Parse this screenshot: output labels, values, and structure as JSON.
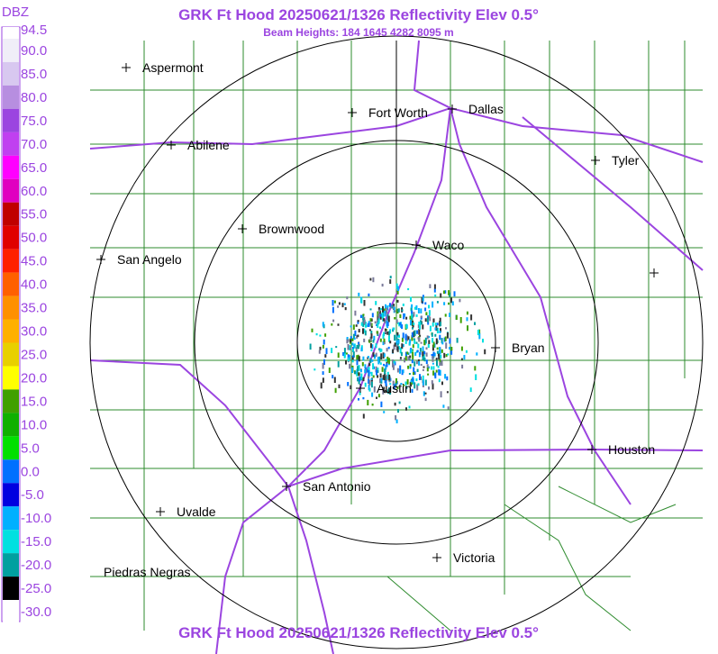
{
  "header": {
    "title": "GRK Ft Hood 20250621/1326 Reflectivity Elev 0.5°",
    "subtitle": "Beam Heights: 184 1645 4282 8095 m"
  },
  "colorbar": {
    "unit": "DBZ",
    "labels": [
      "94.5",
      "90.0",
      "85.0",
      "80.0",
      "75.0",
      "70.0",
      "65.0",
      "60.0",
      "55.0",
      "50.0",
      "45.0",
      "40.0",
      "35.0",
      "30.0",
      "25.0",
      "20.0",
      "15.0",
      "10.0",
      "5.0",
      "0.0",
      "-5.0",
      "-10.0",
      "-15.0",
      "-20.0",
      "-25.0",
      "-30.0"
    ]
  },
  "cities": [
    "Aspermont",
    "Fort Worth",
    "Dallas",
    "Abilene",
    "Tyler",
    "Brownwood",
    "Waco",
    "San Angelo",
    "Bryan",
    "Austin",
    "Houston",
    "San Antonio",
    "Uvalde",
    "Victoria",
    "Piedras Negras"
  ],
  "footer": {
    "title": "GRK Ft Hood 20250621/1326 Reflectivity Elev 0.5°"
  }
}
